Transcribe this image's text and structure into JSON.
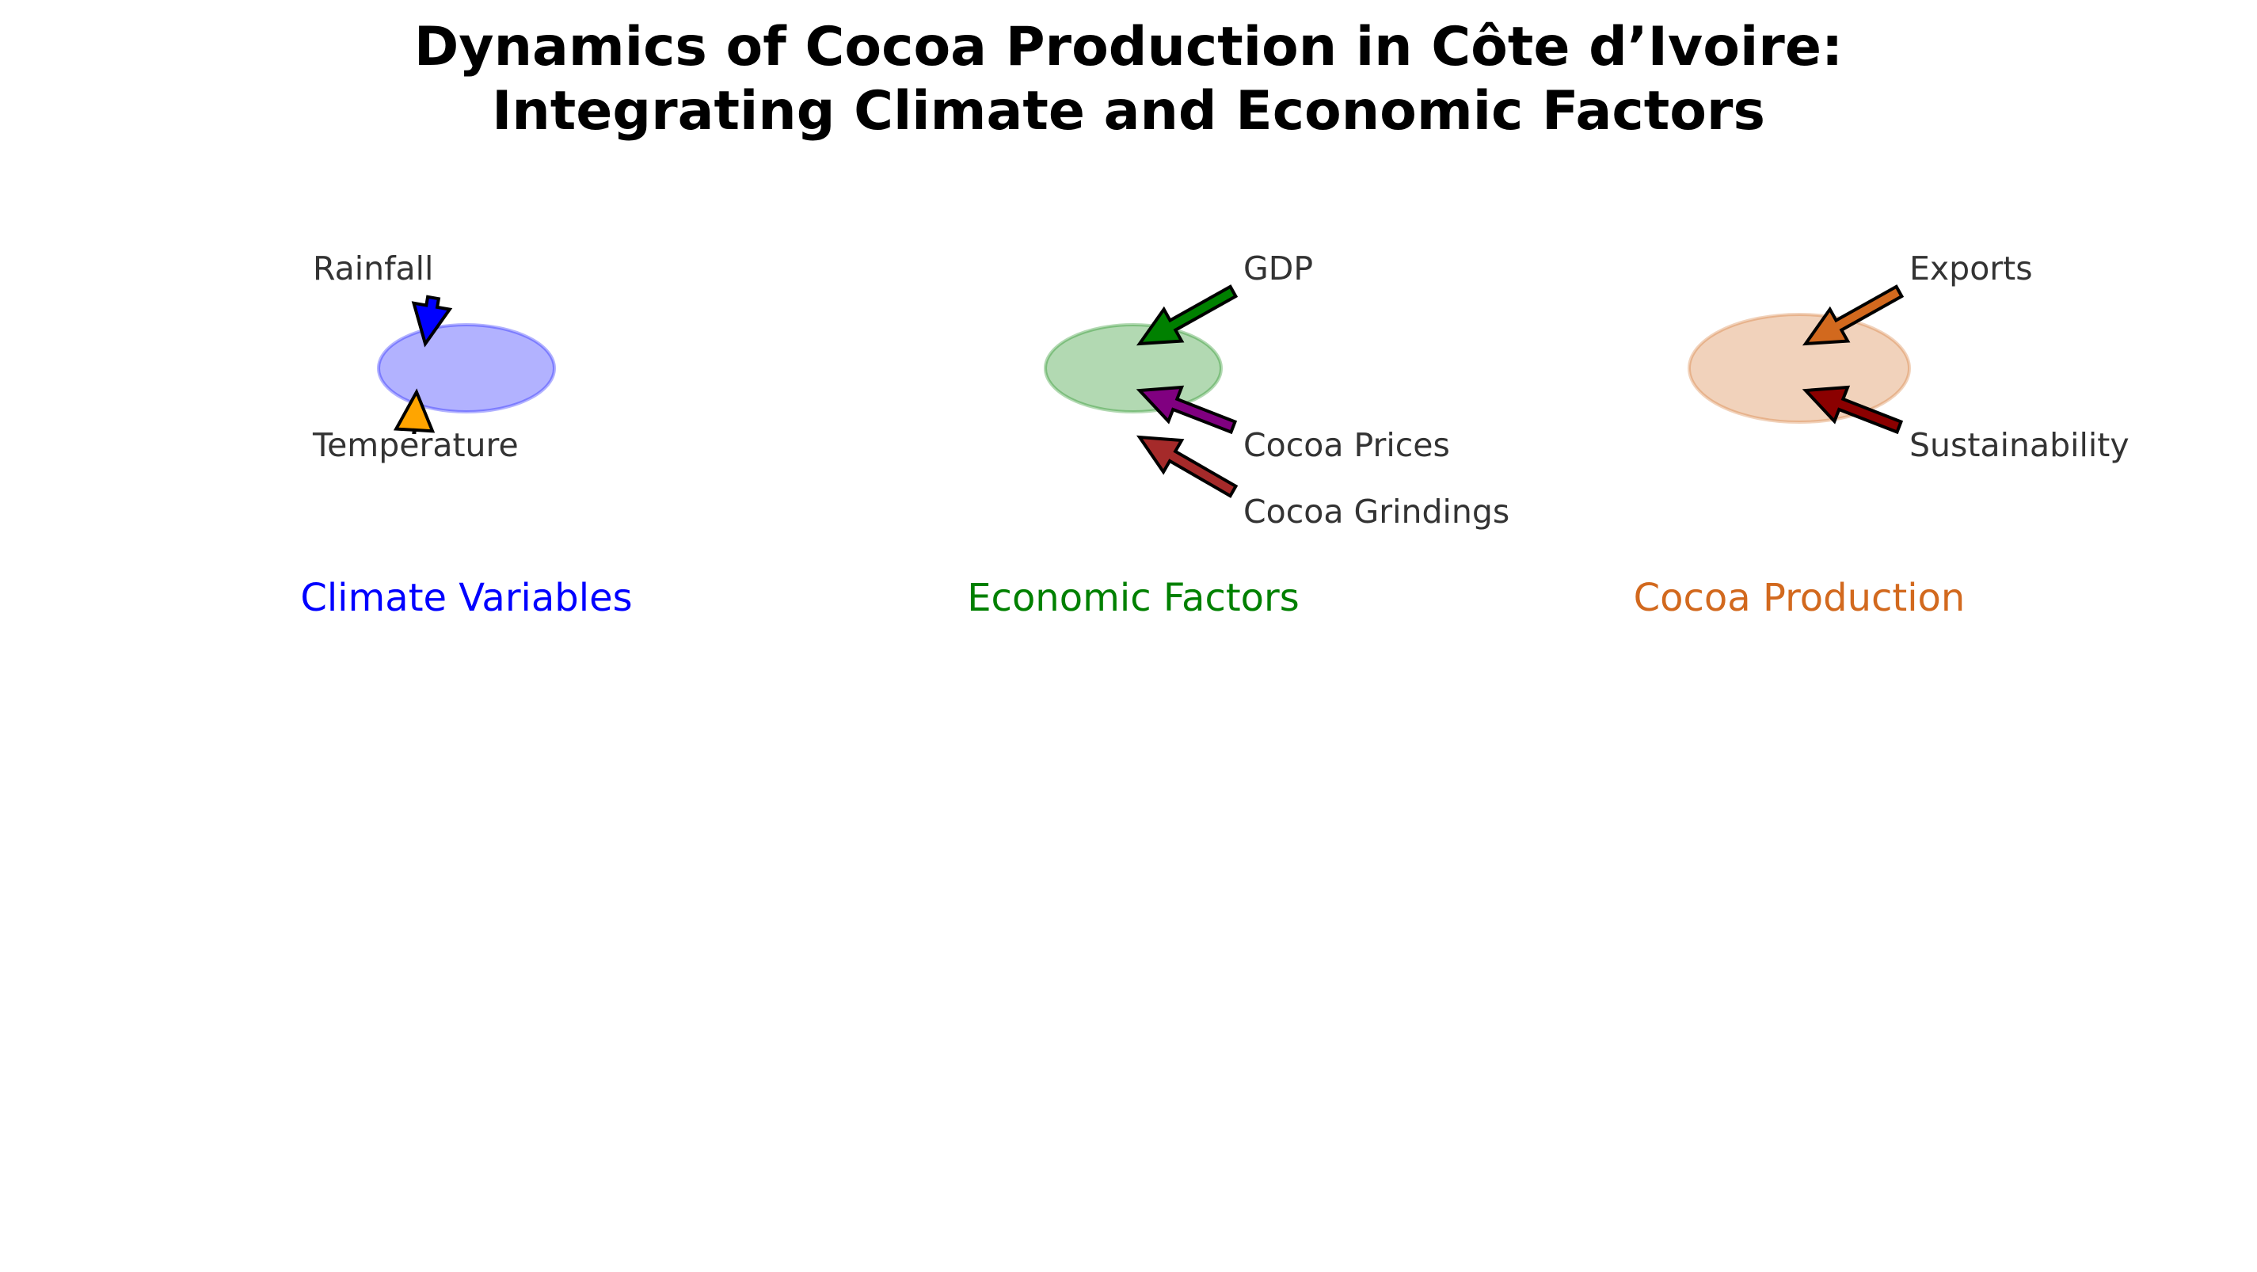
{
  "title": {
    "line1": "Dynamics of Cocoa Production in Côte d’Ivoire:",
    "line2": "Integrating Climate and Economic Factors"
  },
  "groups": [
    {
      "label": "Climate Variables",
      "label_color": "#0000ff",
      "node_fill": "#0000ff",
      "node_stroke": "#0000ff",
      "factors": [
        {
          "label": "Rainfall",
          "arrow_color": "#0000ff"
        },
        {
          "label": "Temperature",
          "arrow_color": "#ffa500"
        }
      ]
    },
    {
      "label": "Economic Factors",
      "label_color": "#008000",
      "node_fill": "#008000",
      "node_stroke": "#008000",
      "factors": [
        {
          "label": "GDP",
          "arrow_color": "#008000"
        },
        {
          "label": "Cocoa Prices",
          "arrow_color": "#800080"
        },
        {
          "label": "Cocoa Grindings",
          "arrow_color": "#a52a2a"
        }
      ]
    },
    {
      "label": "Cocoa Production",
      "label_color": "#d2691e",
      "node_fill": "#d2691e",
      "node_stroke": "#d2691e",
      "factors": [
        {
          "label": "Exports",
          "arrow_color": "#d2691e"
        },
        {
          "label": "Sustainability",
          "arrow_color": "#8b0000"
        }
      ]
    }
  ]
}
